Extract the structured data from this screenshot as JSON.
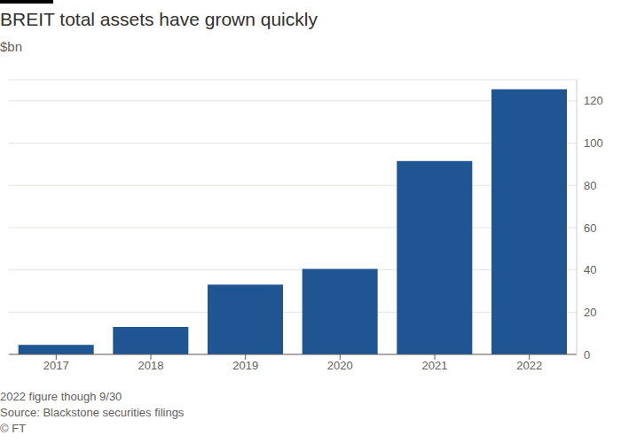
{
  "chart_data": {
    "type": "bar",
    "title": "BREIT total assets have grown quickly",
    "subtitle": "$bn",
    "categories": [
      "2017",
      "2018",
      "2019",
      "2020",
      "2021",
      "2022"
    ],
    "values": [
      4.5,
      13,
      33,
      40.5,
      91.5,
      125.5
    ],
    "color": "#1f5592",
    "ylim": [
      0,
      130
    ],
    "yticks": [
      0,
      20,
      40,
      60,
      80,
      100,
      120
    ],
    "grid": true,
    "annotations": [
      "2022 figure though 9/30",
      "Source: Blackstone securities filings",
      "© FT"
    ]
  }
}
